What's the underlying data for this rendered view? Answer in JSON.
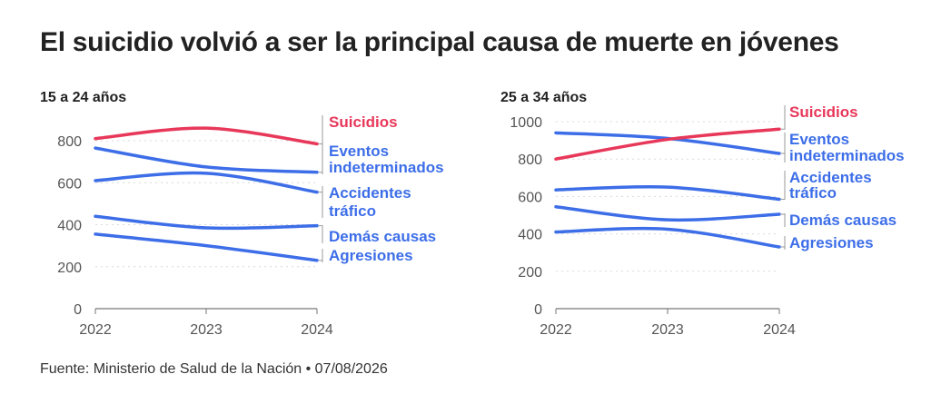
{
  "title": "El suicidio volvió a ser la principal causa de muerte en jóvenes",
  "source": "Fuente: Ministerio de Salud de la Nación • 07/08/2026",
  "colors": {
    "highlight": "#e8385a",
    "other": "#3d6ee8",
    "axis": "#777777",
    "grid": "#d9d9d9"
  },
  "chart_data": [
    {
      "type": "line",
      "title": "15 a 24 años",
      "x": [
        "2022",
        "2023",
        "2024"
      ],
      "ylim": [
        0,
        800
      ],
      "yticks": [
        0,
        200,
        400,
        600,
        800
      ],
      "grid": true,
      "series": [
        {
          "name": "Suicidios",
          "values": [
            810,
            860,
            785
          ],
          "highlight": true
        },
        {
          "name": "Eventos indeterminados",
          "values": [
            765,
            675,
            650
          ]
        },
        {
          "name": "Accidentes tráfico",
          "values": [
            610,
            645,
            555
          ]
        },
        {
          "name": "Demás causas",
          "values": [
            440,
            385,
            395
          ]
        },
        {
          "name": "Agresiones",
          "values": [
            355,
            300,
            230
          ]
        }
      ]
    },
    {
      "type": "line",
      "title": "25 a 34 años",
      "x": [
        "2022",
        "2023",
        "2024"
      ],
      "ylim": [
        0,
        1000
      ],
      "yticks": [
        0,
        200,
        400,
        600,
        800,
        1000
      ],
      "grid": true,
      "series": [
        {
          "name": "Suicidios",
          "values": [
            800,
            905,
            960
          ],
          "highlight": true
        },
        {
          "name": "Eventos indeterminados",
          "values": [
            940,
            910,
            830
          ]
        },
        {
          "name": "Accidentes tráfico",
          "values": [
            635,
            650,
            585
          ]
        },
        {
          "name": "Demás causas",
          "values": [
            545,
            475,
            505
          ]
        },
        {
          "name": "Agresiones",
          "values": [
            410,
            425,
            330
          ]
        }
      ]
    }
  ]
}
